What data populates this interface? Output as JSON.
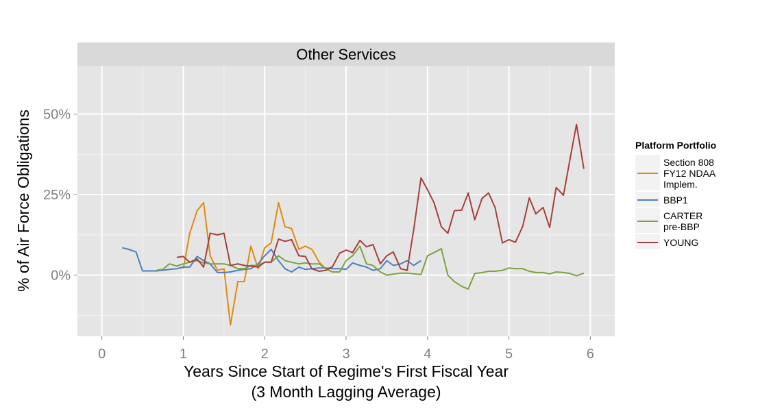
{
  "chart_data": {
    "type": "line",
    "facet_title": "Other Services",
    "xlabel_line1": "Years Since Start of Regime's First Fiscal Year",
    "xlabel_line2": "(3 Month Lagging Average)",
    "ylabel": "% of Air Force Obligations",
    "xlim": [
      -0.3,
      6.3
    ],
    "ylim": [
      -0.19,
      0.65
    ],
    "x_ticks": [
      0,
      1,
      2,
      3,
      4,
      5,
      6
    ],
    "x_tick_labels": [
      "0",
      "1",
      "2",
      "3",
      "4",
      "5",
      "6"
    ],
    "y_ticks": [
      0,
      0.25,
      0.5
    ],
    "y_tick_labels": [
      "0%",
      "25%",
      "50%"
    ],
    "y_minor_ticks": [
      -0.125,
      0.125,
      0.375
    ],
    "grid": true,
    "legend": {
      "title": "Platform Portfolio",
      "position": "right",
      "items": [
        {
          "lines": [
            "Section 808",
            "FY12 NDAA",
            "Implem."
          ],
          "color": "#e08a0b"
        },
        {
          "lines": [
            "BBP1"
          ],
          "color": "#4a7fc1"
        },
        {
          "lines": [
            "CARTER",
            "pre-BBP"
          ],
          "color": "#7ba23f"
        },
        {
          "lines": [
            "YOUNG"
          ],
          "color": "#a63f3a"
        }
      ]
    },
    "series": [
      {
        "name": "Section 808 FY12 NDAA Implem.",
        "color": "#e08a0b",
        "x": [
          1.0,
          1.08,
          1.17,
          1.25,
          1.33,
          1.42,
          1.5,
          1.58,
          1.67,
          1.75,
          1.83,
          1.92,
          2.0,
          2.08,
          2.17,
          2.25,
          2.33,
          2.42,
          2.5,
          2.58,
          2.67,
          2.75,
          2.83
        ],
        "y": [
          0.02,
          0.13,
          0.2,
          0.225,
          0.06,
          0.015,
          0.02,
          -0.155,
          -0.02,
          -0.02,
          0.09,
          0.02,
          0.085,
          0.1,
          0.225,
          0.15,
          0.145,
          0.08,
          0.09,
          0.08,
          0.04,
          0.02,
          0.025
        ]
      },
      {
        "name": "BBP1",
        "color": "#4a7fc1",
        "x": [
          0.25,
          0.33,
          0.42,
          0.5,
          0.58,
          0.67,
          0.75,
          0.83,
          0.92,
          1.0,
          1.08,
          1.17,
          1.25,
          1.33,
          1.42,
          1.5,
          1.58,
          1.67,
          1.75,
          1.83,
          1.92,
          2.0,
          2.08,
          2.17,
          2.25,
          2.33,
          2.42,
          2.5,
          2.58,
          2.67,
          2.75,
          2.83,
          2.92,
          3.0,
          3.08,
          3.17,
          3.25,
          3.33,
          3.42,
          3.5,
          3.58,
          3.67,
          3.75,
          3.83,
          3.92
        ],
        "y": [
          0.085,
          0.08,
          0.072,
          0.013,
          0.013,
          0.013,
          0.015,
          0.018,
          0.02,
          0.025,
          0.025,
          0.058,
          0.045,
          0.035,
          0.008,
          0.008,
          0.01,
          0.015,
          0.018,
          0.02,
          0.035,
          0.06,
          0.08,
          0.045,
          0.02,
          0.01,
          0.025,
          0.018,
          0.02,
          0.022,
          0.022,
          0.02,
          0.02,
          0.018,
          0.038,
          0.03,
          0.025,
          0.015,
          0.02,
          0.045,
          0.03,
          0.035,
          0.045,
          0.03,
          0.045
        ]
      },
      {
        "name": "CARTER pre-BBP",
        "color": "#7ba23f",
        "x": [
          0.67,
          0.75,
          0.83,
          0.92,
          1.0,
          1.08,
          1.17,
          1.25,
          1.33,
          1.42,
          1.5,
          1.58,
          1.67,
          1.75,
          1.83,
          1.92,
          2.0,
          2.08,
          2.17,
          2.25,
          2.33,
          2.42,
          2.5,
          2.58,
          2.67,
          2.75,
          2.83,
          2.92,
          3.0,
          3.08,
          3.17,
          3.25,
          3.33,
          3.42,
          3.5,
          3.58,
          3.67,
          3.75,
          3.83,
          3.92,
          4.0,
          4.08,
          4.17,
          4.25,
          4.33,
          4.42,
          4.5,
          4.58,
          4.67,
          4.75,
          4.83,
          4.92,
          5.0,
          5.08,
          5.17,
          5.25,
          5.33,
          5.42,
          5.5,
          5.58,
          5.67,
          5.75,
          5.83,
          5.92
        ],
        "y": [
          0.015,
          0.018,
          0.035,
          0.028,
          0.035,
          0.04,
          0.045,
          0.038,
          0.035,
          0.035,
          0.035,
          0.03,
          0.02,
          0.02,
          0.03,
          0.03,
          0.04,
          0.04,
          0.06,
          0.045,
          0.04,
          0.035,
          0.038,
          0.035,
          0.035,
          0.02,
          0.01,
          0.01,
          0.045,
          0.06,
          0.09,
          0.035,
          0.03,
          0.01,
          0.0,
          0.003,
          0.006,
          0.006,
          0.004,
          0.002,
          0.06,
          0.07,
          0.082,
          0.0,
          -0.02,
          -0.035,
          -0.043,
          0.005,
          0.008,
          0.012,
          0.012,
          0.015,
          0.022,
          0.02,
          0.02,
          0.012,
          0.008,
          0.008,
          0.004,
          0.01,
          0.008,
          0.005,
          -0.002,
          0.006
        ]
      },
      {
        "name": "YOUNG",
        "color": "#a63f3a",
        "x": [
          0.92,
          1.0,
          1.08,
          1.17,
          1.25,
          1.33,
          1.42,
          1.5,
          1.58,
          1.67,
          1.75,
          1.83,
          1.92,
          2.0,
          2.08,
          2.17,
          2.25,
          2.33,
          2.42,
          2.5,
          2.58,
          2.67,
          2.75,
          2.83,
          2.92,
          3.0,
          3.08,
          3.17,
          3.25,
          3.33,
          3.42,
          3.5,
          3.58,
          3.67,
          3.75,
          3.83,
          3.92,
          4.0,
          4.08,
          4.17,
          4.25,
          4.33,
          4.42,
          4.5,
          4.58,
          4.67,
          4.75,
          4.83,
          4.92,
          5.0,
          5.08,
          5.17,
          5.25,
          5.33,
          5.42,
          5.5,
          5.58,
          5.67,
          5.75,
          5.83,
          5.92
        ],
        "y": [
          0.055,
          0.058,
          0.04,
          0.05,
          0.025,
          0.13,
          0.125,
          0.13,
          0.03,
          0.035,
          0.03,
          0.028,
          0.025,
          0.04,
          0.04,
          0.112,
          0.105,
          0.11,
          0.06,
          0.058,
          0.02,
          0.012,
          0.015,
          0.025,
          0.068,
          0.078,
          0.07,
          0.108,
          0.088,
          0.095,
          0.035,
          0.06,
          0.072,
          0.02,
          0.015,
          0.14,
          0.302,
          0.265,
          0.225,
          0.15,
          0.13,
          0.2,
          0.202,
          0.255,
          0.172,
          0.238,
          0.255,
          0.21,
          0.1,
          0.11,
          0.102,
          0.152,
          0.24,
          0.19,
          0.21,
          0.148,
          0.272,
          0.248,
          0.36,
          0.468,
          0.33
        ]
      }
    ]
  }
}
